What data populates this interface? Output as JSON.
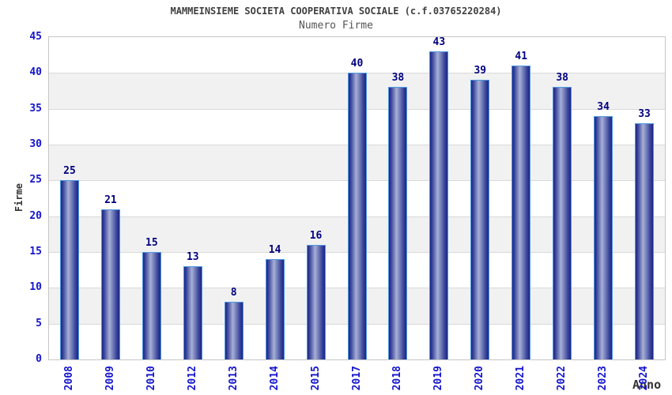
{
  "chart_data": {
    "type": "bar",
    "title": "MAMMEINSIEME SOCIETA COOPERATIVA SOCIALE (c.f.03765220284)",
    "subtitle": "Numero Firme",
    "xlabel": "Anno",
    "ylabel": "Firme",
    "categories": [
      "2008",
      "2009",
      "2010",
      "2012",
      "2013",
      "2014",
      "2015",
      "2017",
      "2018",
      "2019",
      "2020",
      "2021",
      "2022",
      "2023",
      "2024"
    ],
    "values": [
      25,
      21,
      15,
      13,
      8,
      14,
      16,
      40,
      38,
      43,
      39,
      41,
      38,
      34,
      33
    ],
    "ylim": [
      0,
      45
    ],
    "ytick_step": 5,
    "yticks": [
      0,
      5,
      10,
      15,
      20,
      25,
      30,
      35,
      40,
      45
    ],
    "grid": true,
    "legend_position": "none",
    "value_labels_shown": true,
    "colors": {
      "bar_edge_dark": "#1b2786",
      "bar_center_light": "#a7b0d6",
      "bar_outline": "#4e97e0",
      "tick_label": "#1414cc",
      "value_label": "#000080",
      "title": "#404040",
      "subtitle": "#555555",
      "axis_title": "#333333",
      "band_white": "#ffffff",
      "band_gray": "#f1f1f1",
      "gridline": "#d9d9d9",
      "plot_border": "#c6c6c6"
    }
  }
}
